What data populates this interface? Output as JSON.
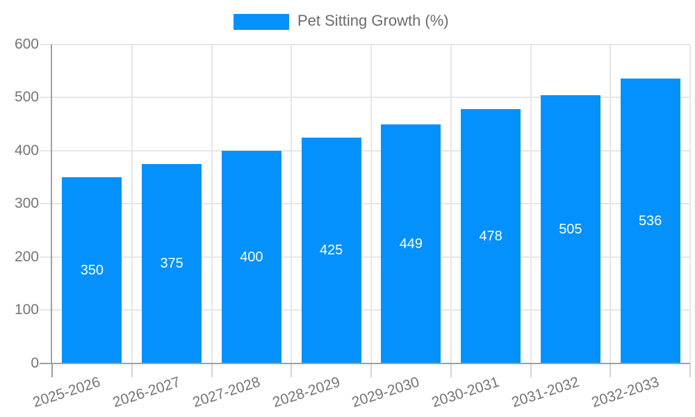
{
  "legend": {
    "label": "Pet Sitting Growth (%)"
  },
  "colors": {
    "bar": "#0491fb",
    "bar_label": "#ffffff",
    "axis_text": "#757575",
    "legend_text": "#6b6b6b",
    "grid": "#e6e6e6",
    "axis_line": "#a0a0a0",
    "tick": "#d4d4d4",
    "background": "#ffffff"
  },
  "chart_data": {
    "type": "bar",
    "title": "",
    "xlabel": "",
    "ylabel": "",
    "categories": [
      "2025-2026",
      "2026-2027",
      "2027-2028",
      "2028-2029",
      "2029-2030",
      "2030-2031",
      "2031-2032",
      "2032-2033"
    ],
    "series": [
      {
        "name": "Pet Sitting Growth (%)",
        "values": [
          350,
          375,
          400,
          425,
          449,
          478,
          505,
          536
        ]
      }
    ],
    "y_ticks": [
      0,
      100,
      200,
      300,
      400,
      500,
      600
    ],
    "ylim": [
      0,
      600
    ],
    "grid": true,
    "legend_position": "top-center",
    "bar_value_labels": "inside-center",
    "x_label_rotation_deg": -18
  }
}
